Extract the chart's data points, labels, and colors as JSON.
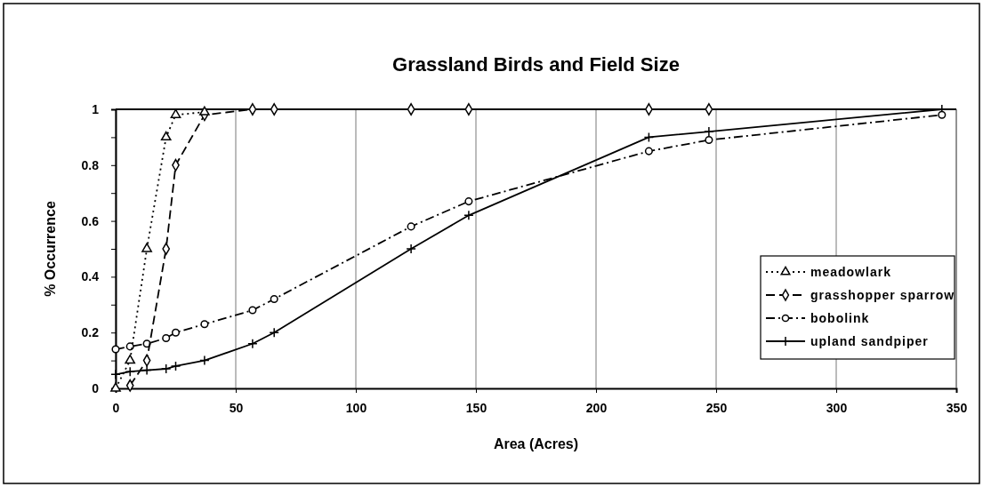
{
  "chart_data": {
    "type": "line",
    "title": "Grassland Birds and Field Size",
    "xlabel": "Area (Acres)",
    "ylabel": "% Occurrence",
    "x": [
      0,
      6,
      13,
      21,
      25,
      37,
      57,
      66,
      123,
      147,
      222,
      247,
      344
    ],
    "series": [
      {
        "name": "meadowlark",
        "color": "#000000",
        "marker": "triangle",
        "line_style": "dotted",
        "x": [
          0,
          6,
          13,
          21,
          25,
          37
        ],
        "values": [
          0,
          0.1,
          0.5,
          0.9,
          0.98,
          0.99
        ]
      },
      {
        "name": "grasshopper sparrow",
        "color": "#000000",
        "marker": "diamond",
        "line_style": "dashed",
        "x": [
          6,
          13,
          21,
          25,
          37,
          57,
          66,
          123,
          147,
          222,
          247
        ],
        "values": [
          0.01,
          0.1,
          0.5,
          0.8,
          0.98,
          1,
          1,
          1,
          1,
          1,
          1
        ]
      },
      {
        "name": "bobolink",
        "color": "#000000",
        "marker": "circle",
        "line_style": "dashdot",
        "values": [
          0.14,
          0.15,
          0.16,
          0.18,
          0.2,
          0.23,
          0.28,
          0.32,
          0.58,
          0.67,
          0.85,
          0.89,
          0.98
        ]
      },
      {
        "name": "upland sandpiper",
        "color": "#000000",
        "marker": "cross",
        "line_style": "solid",
        "values": [
          0.05,
          0.06,
          0.065,
          0.07,
          0.08,
          0.1,
          0.16,
          0.2,
          0.5,
          0.62,
          0.9,
          0.92,
          1
        ]
      }
    ],
    "xlim": [
      0,
      350
    ],
    "xticks": [
      0,
      50,
      100,
      150,
      200,
      250,
      300,
      350
    ],
    "ylim": [
      0,
      1
    ],
    "yticks": [
      0,
      {
        "value": 0.1,
        "label": null
      },
      0.2,
      {
        "value": 0.3,
        "label": null
      },
      0.4,
      {
        "value": 0.5,
        "label": null
      },
      0.6,
      {
        "value": 0.7,
        "label": null
      },
      0.8,
      {
        "value": 0.9,
        "label": null
      },
      1
    ],
    "grid": "x",
    "legend": "right"
  }
}
